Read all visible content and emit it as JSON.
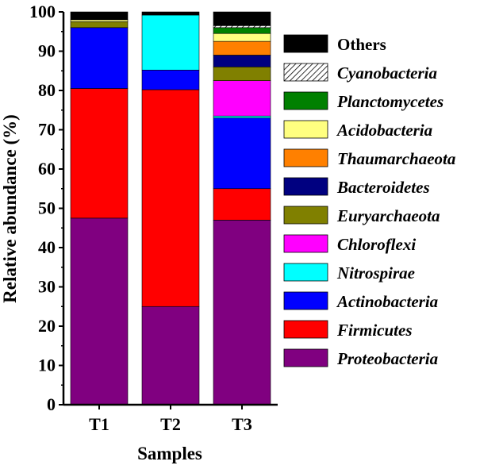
{
  "chart_data": {
    "type": "bar",
    "stacked": true,
    "categories": [
      "T1",
      "T2",
      "T3"
    ],
    "xlabel": "Samples",
    "ylabel": "Relative abundance (%)",
    "ylim": [
      0,
      100
    ],
    "yticks": [
      "0",
      "10",
      "20",
      "30",
      "40",
      "50",
      "60",
      "70",
      "80",
      "90",
      "100"
    ],
    "grid": false,
    "legend_position": "right",
    "series": [
      {
        "name": "Proteobacteria",
        "color": "#800080",
        "values": [
          47.5,
          25.0,
          47.0
        ]
      },
      {
        "name": "Firmicutes",
        "color": "#ff0000",
        "values": [
          33.0,
          55.2,
          8.0
        ]
      },
      {
        "name": "Actinobacteria",
        "color": "#0000ff",
        "values": [
          15.5,
          5.0,
          18.0
        ]
      },
      {
        "name": "Nitrospirae",
        "color": "#00ffff",
        "values": [
          0.0,
          14.0,
          0.5
        ]
      },
      {
        "name": "Chloroflexi",
        "color": "#ff00ff",
        "values": [
          0.0,
          0.0,
          9.0
        ]
      },
      {
        "name": "Euryarchaeota",
        "color": "#808000",
        "values": [
          1.5,
          0.0,
          3.5
        ]
      },
      {
        "name": "Bacteroidetes",
        "color": "#000080",
        "values": [
          0.0,
          0.0,
          3.0
        ]
      },
      {
        "name": "Thaumarchaeota",
        "color": "#ff8000",
        "values": [
          0.0,
          0.0,
          3.5
        ]
      },
      {
        "name": "Acidobacteria",
        "color": "#ffff80",
        "values": [
          0.5,
          0.0,
          2.0
        ]
      },
      {
        "name": "Planctomycetes",
        "color": "#008000",
        "values": [
          0.0,
          0.0,
          1.5
        ]
      },
      {
        "name": "Cyanobacteria",
        "color": "#ffffff",
        "pattern": "hatch",
        "values": [
          0.0,
          0.0,
          0.5
        ]
      },
      {
        "name": "Others",
        "color": "#000000",
        "italic": false,
        "values": [
          2.0,
          0.8,
          3.5
        ]
      }
    ]
  }
}
